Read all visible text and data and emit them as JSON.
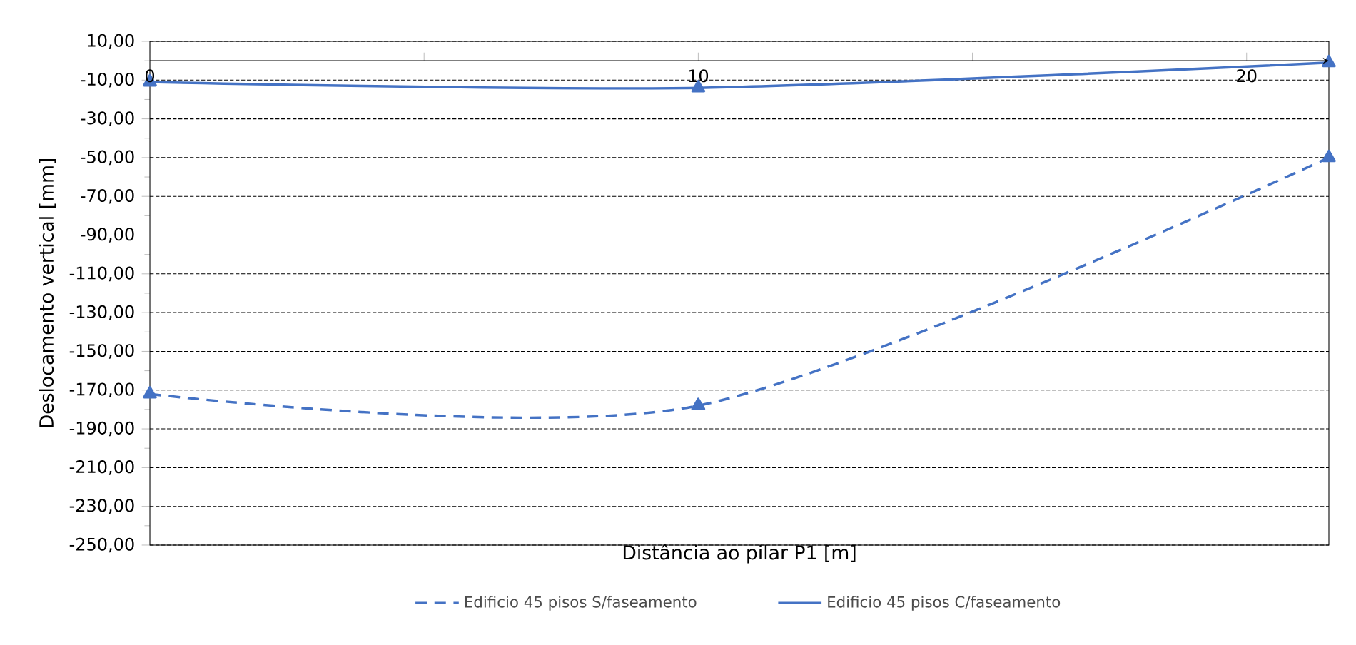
{
  "chart_data": {
    "type": "line",
    "xlabel": "Distância ao pilar P1 [m]",
    "ylabel": "Deslocamento vertical [mm]",
    "xlim": [
      0,
      21.5
    ],
    "ylim": [
      -250,
      10
    ],
    "xticks": [
      0,
      {
        "value": 5,
        "label": null
      },
      10,
      {
        "value": 15,
        "label": null
      },
      20
    ],
    "yticks": [
      {
        "value": 10,
        "label": "10,00"
      },
      {
        "value": -10,
        "label": "-10,00"
      },
      {
        "value": -30,
        "label": "-30,00"
      },
      {
        "value": -50,
        "label": "-50,00"
      },
      {
        "value": -70,
        "label": "-70,00"
      },
      {
        "value": -90,
        "label": "-90,00"
      },
      {
        "value": -110,
        "label": "-110,00"
      },
      {
        "value": -130,
        "label": "-130,00"
      },
      {
        "value": -150,
        "label": "-150,00"
      },
      {
        "value": -170,
        "label": "-170,00"
      },
      {
        "value": -190,
        "label": "-190,00"
      },
      {
        "value": -210,
        "label": "-210,00"
      },
      {
        "value": -230,
        "label": "-230,00"
      },
      {
        "value": -250,
        "label": "-250,00"
      }
    ],
    "grid": "y",
    "legend": "bottom",
    "marker": "triangle",
    "series": [
      {
        "name": "Edificio 45 pisos S/faseamento",
        "color": "#4472c4",
        "line_style": "dashed",
        "x": [
          0,
          10,
          21.5
        ],
        "values": [
          -172,
          -178,
          -50
        ]
      },
      {
        "name": "Edificio 45 pisos C/faseamento",
        "color": "#4472c4",
        "line_style": "solid",
        "x": [
          0,
          10,
          21.5
        ],
        "values": [
          -11,
          -14,
          -1
        ]
      }
    ]
  }
}
